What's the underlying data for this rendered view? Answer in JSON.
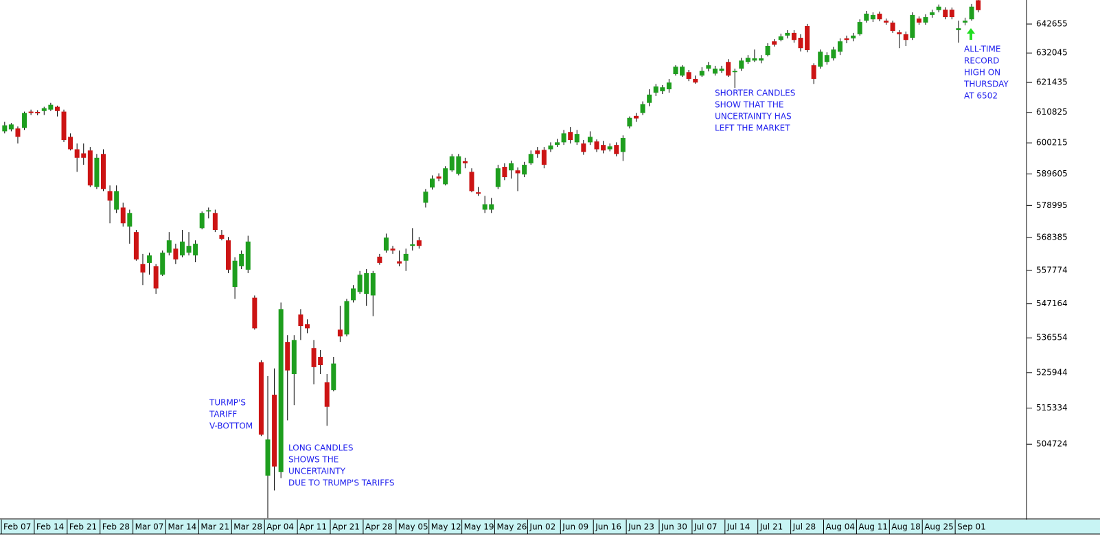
{
  "chart_data": {
    "type": "candlestick",
    "log_scale": true,
    "up_color": "#1e9e1e",
    "down_color": "#cc1414",
    "wick_color": "#000000",
    "annotation_color": "#2020ee",
    "ylim": [
      483700,
      651600
    ],
    "yticks": [
      504724,
      515334,
      525944,
      536554,
      547164,
      557774,
      568385,
      578995,
      589605,
      600215,
      610825,
      621435,
      632045,
      642655
    ],
    "categories": [
      "Feb 07",
      null,
      null,
      null,
      null,
      "Feb 14",
      null,
      null,
      null,
      null,
      "Feb 21",
      null,
      null,
      null,
      null,
      "Feb 28",
      null,
      null,
      null,
      null,
      "Mar 07",
      null,
      null,
      null,
      null,
      "Mar 14",
      null,
      null,
      null,
      null,
      "Mar 21",
      null,
      null,
      null,
      null,
      "Mar 28",
      null,
      null,
      null,
      null,
      "Apr 04",
      null,
      null,
      null,
      null,
      "Apr 11",
      null,
      null,
      null,
      null,
      "Apr 21",
      null,
      null,
      null,
      null,
      "Apr 28",
      null,
      null,
      null,
      null,
      "May 05",
      null,
      null,
      null,
      null,
      "May 12",
      null,
      null,
      null,
      null,
      "May 19",
      null,
      null,
      null,
      null,
      "May 26",
      null,
      null,
      null,
      null,
      "Jun 02",
      null,
      null,
      null,
      null,
      "Jun 09",
      null,
      null,
      null,
      null,
      "Jun 16",
      null,
      null,
      null,
      null,
      "Jun 23",
      null,
      null,
      null,
      null,
      "Jun 30",
      null,
      null,
      null,
      null,
      "Jul 07",
      null,
      null,
      null,
      null,
      "Jul 14",
      null,
      null,
      null,
      null,
      "Jul 21",
      null,
      null,
      null,
      null,
      "Jul 28",
      null,
      null,
      null,
      null,
      "Aug 04",
      null,
      null,
      null,
      null,
      "Aug 11",
      null,
      null,
      null,
      null,
      "Aug 18",
      null,
      null,
      null,
      null,
      "Aug 25",
      null,
      null,
      null,
      null,
      "Sep 01",
      null,
      null,
      null
    ],
    "open": [
      604200,
      604900,
      605200,
      605400,
      611100,
      611000,
      611300,
      611800,
      612800,
      611100,
      602300,
      598000,
      596600,
      597600,
      585200,
      596400,
      583800,
      577600,
      578300,
      572000,
      570200,
      559800,
      560200,
      559100,
      556400,
      563500,
      564800,
      562600,
      563500,
      562600,
      571500,
      577000,
      576500,
      569300,
      567500,
      552500,
      559100,
      558000,
      549100,
      529100,
      495700,
      519300,
      496700,
      535300,
      525500,
      543800,
      540800,
      533400,
      530700,
      523000,
      520700,
      539100,
      537600,
      548300,
      550900,
      550300,
      549800,
      562200,
      564200,
      564800,
      560700,
      560900,
      565700,
      567500,
      579900,
      585000,
      588700,
      586100,
      590800,
      589600,
      593900,
      590300,
      583400,
      577600,
      577600,
      585200,
      592000,
      590800,
      590800,
      589400,
      593200,
      597600,
      597800,
      598000,
      599500,
      600400,
      604000,
      600400,
      600000,
      600400,
      600700,
      599500,
      598000,
      599500,
      597100,
      605900,
      609600,
      610600,
      614200,
      617800,
      618300,
      619000,
      624400,
      623900,
      625100,
      622700,
      623900,
      626400,
      624600,
      625600,
      628800,
      625100,
      626400,
      628800,
      629300,
      629300,
      631300,
      636300,
      636800,
      638400,
      639400,
      637600,
      641900,
      627600,
      627100,
      628800,
      630100,
      632500,
      637400,
      637400,
      638900,
      643900,
      644400,
      646500,
      643900,
      643200,
      639600,
      638900,
      637600,
      644700,
      643200,
      646000,
      647800,
      648000,
      648000,
      640400,
      643200,
      644400,
      651500
    ],
    "high": [
      607500,
      607100,
      605900,
      611100,
      611800,
      611600,
      612800,
      614200,
      613200,
      611800,
      603500,
      600000,
      600000,
      598800,
      596400,
      598000,
      585700,
      585700,
      579900,
      577600,
      570900,
      563100,
      563500,
      559800,
      564200,
      570200,
      566400,
      570900,
      570200,
      567500,
      577000,
      578300,
      577600,
      570900,
      568600,
      562000,
      564200,
      569000,
      549800,
      529700,
      524900,
      527200,
      547600,
      537400,
      537400,
      545500,
      542300,
      535900,
      532800,
      525500,
      530700,
      546500,
      548700,
      553100,
      557600,
      558200,
      557600,
      563100,
      569700,
      565700,
      564200,
      564800,
      571500,
      568600,
      584500,
      589100,
      589800,
      592200,
      596400,
      596400,
      595100,
      591500,
      585200,
      582200,
      581500,
      592700,
      593200,
      594100,
      591800,
      593700,
      597600,
      598800,
      598800,
      600400,
      601600,
      604700,
      605700,
      604700,
      601200,
      604200,
      601400,
      600900,
      600000,
      600400,
      602800,
      609400,
      610600,
      614700,
      619000,
      620900,
      620500,
      622700,
      627600,
      627600,
      625900,
      623900,
      626900,
      628800,
      627400,
      627400,
      629800,
      626400,
      630300,
      631300,
      633300,
      631300,
      635600,
      637100,
      639100,
      640400,
      640400,
      638900,
      642700,
      628300,
      633300,
      632300,
      634300,
      637400,
      638400,
      639400,
      644400,
      647500,
      647000,
      647300,
      644700,
      643900,
      640400,
      639900,
      647000,
      645500,
      646300,
      648000,
      649900,
      648900,
      648800,
      643900,
      645000,
      650100,
      651600
    ],
    "low": [
      603500,
      604200,
      600000,
      604700,
      609900,
      609800,
      609900,
      611300,
      609400,
      600500,
      597600,
      590300,
      592700,
      585200,
      584500,
      583800,
      573100,
      576500,
      572000,
      566400,
      560900,
      553100,
      556400,
      550300,
      556000,
      562600,
      559800,
      562000,
      562600,
      560400,
      571100,
      574700,
      570200,
      567500,
      556900,
      548700,
      558200,
      556900,
      539100,
      507100,
      483700,
      491500,
      495000,
      511700,
      516200,
      535900,
      538000,
      522400,
      525500,
      510100,
      520300,
      535300,
      537000,
      547600,
      550300,
      546500,
      543300,
      559600,
      563500,
      563100,
      559100,
      557600,
      564200,
      564800,
      578300,
      584300,
      587100,
      585700,
      590300,
      589100,
      591500,
      583400,
      582200,
      576500,
      576500,
      584500,
      587500,
      588000,
      583800,
      588500,
      592700,
      595100,
      591500,
      597100,
      598800,
      599500,
      600000,
      599500,
      596100,
      599500,
      597100,
      596600,
      597300,
      595600,
      594000,
      605200,
      607500,
      609900,
      613000,
      616600,
      617300,
      617800,
      623900,
      623400,
      621900,
      621000,
      623400,
      625400,
      623900,
      624900,
      623400,
      619500,
      625600,
      628100,
      628800,
      628300,
      630800,
      634400,
      636300,
      637400,
      635800,
      632600,
      632300,
      620900,
      626400,
      627800,
      629300,
      631300,
      635600,
      636300,
      638400,
      643200,
      643400,
      643700,
      642400,
      639400,
      633800,
      634600,
      636800,
      642400,
      642400,
      645000,
      647000,
      644400,
      644400,
      635800,
      642200,
      643900,
      647000
    ],
    "close": [
      606300,
      606600,
      602300,
      610600,
      610600,
      610500,
      612300,
      613500,
      611300,
      601200,
      598000,
      595100,
      595100,
      585700,
      595100,
      584500,
      580600,
      583800,
      573100,
      576500,
      561300,
      557100,
      562600,
      552000,
      563500,
      567500,
      561300,
      567100,
      565700,
      566400,
      576500,
      577400,
      570900,
      568000,
      558000,
      560900,
      563100,
      567100,
      539500,
      507500,
      506100,
      498300,
      545500,
      526600,
      535900,
      540200,
      539500,
      527600,
      528200,
      515700,
      528700,
      537000,
      548000,
      552000,
      556400,
      556900,
      556900,
      560200,
      568400,
      564200,
      560000,
      563100,
      566200,
      565700,
      583600,
      588000,
      588000,
      591500,
      595600,
      595600,
      593200,
      583800,
      582900,
      579400,
      579400,
      591500,
      588500,
      593200,
      589800,
      592700,
      596400,
      596400,
      592700,
      599300,
      600400,
      603500,
      601200,
      603300,
      597100,
      602300,
      598000,
      597600,
      599000,
      596400,
      601900,
      608900,
      608700,
      613700,
      617100,
      620000,
      619700,
      621400,
      627100,
      627100,
      622700,
      621400,
      625600,
      627600,
      626400,
      626400,
      623900,
      625600,
      629300,
      630300,
      630100,
      630100,
      634600,
      635100,
      638100,
      639400,
      636800,
      633800,
      633100,
      622700,
      632500,
      631300,
      633300,
      636300,
      636800,
      638400,
      643400,
      646500,
      646000,
      644400,
      643200,
      640100,
      638900,
      636800,
      646000,
      643200,
      645200,
      647000,
      649100,
      645200,
      645200,
      641100,
      643900,
      649100,
      647800
    ],
    "annotations": [
      {
        "lines": [
          "TURMP'S",
          "TARIFF",
          "V-BOTTOM"
        ]
      },
      {
        "lines": [
          "LONG CANDLES",
          "SHOWS THE",
          "UNCERTAINTY",
          "DUE TO TRUMP'S TARIFFS"
        ]
      },
      {
        "lines": [
          "SHORTER CANDLES",
          "SHOW THAT THE",
          "UNCERTAINTY HAS",
          "LEFT THE MARKET"
        ]
      },
      {
        "lines": [
          "ALL-TIME",
          "RECORD",
          "HIGH ON",
          "THURSDAY",
          "AT 6502"
        ]
      }
    ]
  }
}
